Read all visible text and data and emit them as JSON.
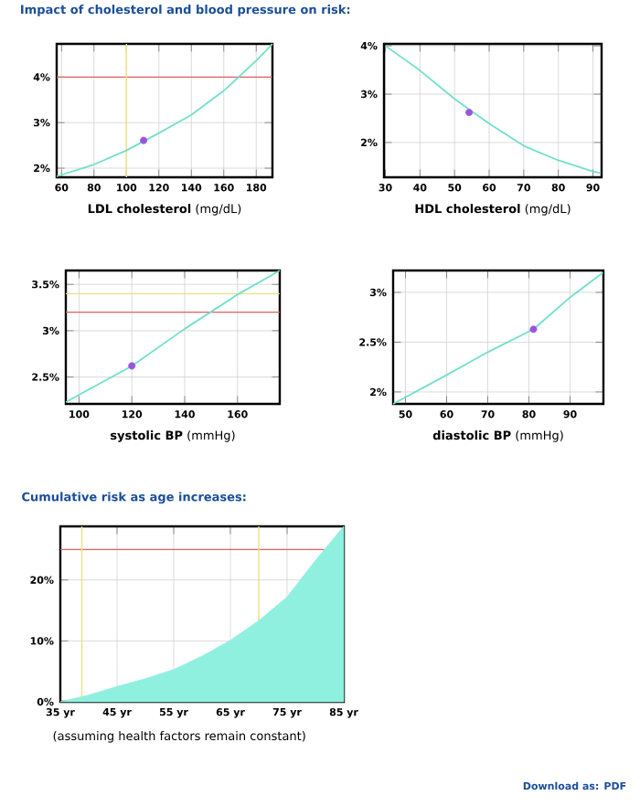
{
  "chart_data": [
    {
      "type": "line",
      "title": "Impact of cholesterol and blood pressure on risk:",
      "xlabel": "**LDL cholesterol** (mg/dL)",
      "xlim": [
        57,
        190
      ],
      "ylim": [
        1.8,
        4.73
      ],
      "xticks": [
        60,
        80,
        100,
        120,
        140,
        160,
        180
      ],
      "yticks": [
        {
          "value": 2,
          "label": "2%"
        },
        {
          "value": 3,
          "label": "3%"
        },
        {
          "value": 4,
          "label": "4%"
        }
      ],
      "grid": true,
      "ref_lines": [
        {
          "axis": "y",
          "value": 4,
          "color": "#e06060"
        },
        {
          "axis": "x",
          "value": 100,
          "color": "#f0e080"
        }
      ],
      "series": [
        {
          "color": "#70e0cc",
          "marker": "none",
          "x": [
            57,
            80,
            100,
            120,
            140,
            160,
            180,
            190
          ],
          "values": [
            1.82,
            2.08,
            2.39,
            2.77,
            3.17,
            3.7,
            4.36,
            4.73
          ]
        },
        {
          "type": "scatter",
          "color": "#9955dd",
          "marker": "circle",
          "x": [
            110.6
          ],
          "values": [
            2.61
          ]
        }
      ]
    },
    {
      "type": "line",
      "xlabel": "**HDL cholesterol** (mg/dL)",
      "xlim": [
        29.6,
        92.5
      ],
      "ylim": [
        1.28,
        4.04
      ],
      "xticks": [
        30,
        40,
        50,
        60,
        70,
        80,
        90
      ],
      "yticks": [
        {
          "value": 2,
          "label": "2%"
        },
        {
          "value": 3,
          "label": "3%"
        },
        {
          "value": 4,
          "label": "4%"
        }
      ],
      "grid": true,
      "series": [
        {
          "color": "#70e0cc",
          "marker": "none",
          "x": [
            30,
            40,
            50,
            60,
            70,
            80,
            90,
            92
          ],
          "values": [
            4.0,
            3.49,
            2.9,
            2.39,
            1.93,
            1.63,
            1.4,
            1.37
          ]
        },
        {
          "type": "scatter",
          "color": "#9955dd",
          "marker": "circle",
          "x": [
            54.2
          ],
          "values": [
            2.62
          ]
        }
      ]
    },
    {
      "type": "line",
      "xlabel": "**systolic BP** (mmHg)",
      "xlim": [
        95,
        176
      ],
      "ylim": [
        2.21,
        3.65
      ],
      "xticks": [
        100,
        120,
        140,
        160
      ],
      "yticks": [
        {
          "value": 2.5,
          "label": "2.5%"
        },
        {
          "value": 3,
          "label": "3%"
        },
        {
          "value": 3.5,
          "label": "3.5%"
        }
      ],
      "grid": true,
      "ref_lines": [
        {
          "axis": "y",
          "value": 3.2,
          "color": "#e06060"
        },
        {
          "axis": "y",
          "value": 3.4,
          "color": "#f0e080"
        }
      ],
      "series": [
        {
          "color": "#70e0cc",
          "marker": "none",
          "x": [
            95,
            120,
            140,
            160,
            176
          ],
          "values": [
            2.23,
            2.62,
            3.02,
            3.39,
            3.65
          ]
        },
        {
          "type": "scatter",
          "color": "#9955dd",
          "marker": "circle",
          "x": [
            120
          ],
          "values": [
            2.62
          ]
        }
      ]
    },
    {
      "type": "line",
      "xlabel": "**diastolic BP** (mmHg)",
      "xlim": [
        47,
        98.1
      ],
      "ylim": [
        1.88,
        3.22
      ],
      "xticks": [
        50,
        60,
        70,
        80,
        90
      ],
      "yticks": [
        {
          "value": 2,
          "label": "2%"
        },
        {
          "value": 2.5,
          "label": "2.5%"
        },
        {
          "value": 3,
          "label": "3%"
        }
      ],
      "grid": true,
      "series": [
        {
          "color": "#70e0cc",
          "marker": "none",
          "x": [
            47,
            60,
            70,
            81.1,
            90,
            98
          ],
          "values": [
            1.88,
            2.17,
            2.4,
            2.63,
            2.95,
            3.2
          ]
        },
        {
          "type": "scatter",
          "color": "#9955dd",
          "marker": "circle",
          "x": [
            81.1
          ],
          "values": [
            2.63
          ]
        }
      ]
    },
    {
      "type": "area",
      "title": "Cumulative risk as age increases:",
      "annotations": [
        "(assuming health factors remain constant)",
        "Download as: PDF"
      ],
      "xlim": [
        35,
        85
      ],
      "ylim": [
        0,
        28.8
      ],
      "xticks": [
        {
          "value": 35,
          "label": "35 yr"
        },
        {
          "value": 45,
          "label": "45 yr"
        },
        {
          "value": 55,
          "label": "55 yr"
        },
        {
          "value": 65,
          "label": "65 yr"
        },
        {
          "value": 75,
          "label": "75 yr"
        },
        {
          "value": 85,
          "label": "85 yr"
        }
      ],
      "yticks": [
        {
          "value": 0,
          "label": "0%"
        },
        {
          "value": 10,
          "label": "10%"
        },
        {
          "value": 20,
          "label": "20%"
        }
      ],
      "grid": true,
      "ref_lines": [
        {
          "axis": "y",
          "value": 25,
          "color": "#e06060"
        },
        {
          "axis": "x",
          "value": 38.8,
          "color": "#f0e080"
        },
        {
          "axis": "x",
          "value": 70,
          "color": "#f0e080"
        }
      ],
      "series": [
        {
          "color": "#8ff0e0",
          "x": [
            35,
            40,
            45,
            50,
            55,
            60,
            65,
            70,
            75,
            80,
            85
          ],
          "values": [
            0,
            1.1,
            2.5,
            3.8,
            5.3,
            7.5,
            10.1,
            13.3,
            17.2,
            23.2,
            28.8
          ]
        }
      ]
    }
  ]
}
